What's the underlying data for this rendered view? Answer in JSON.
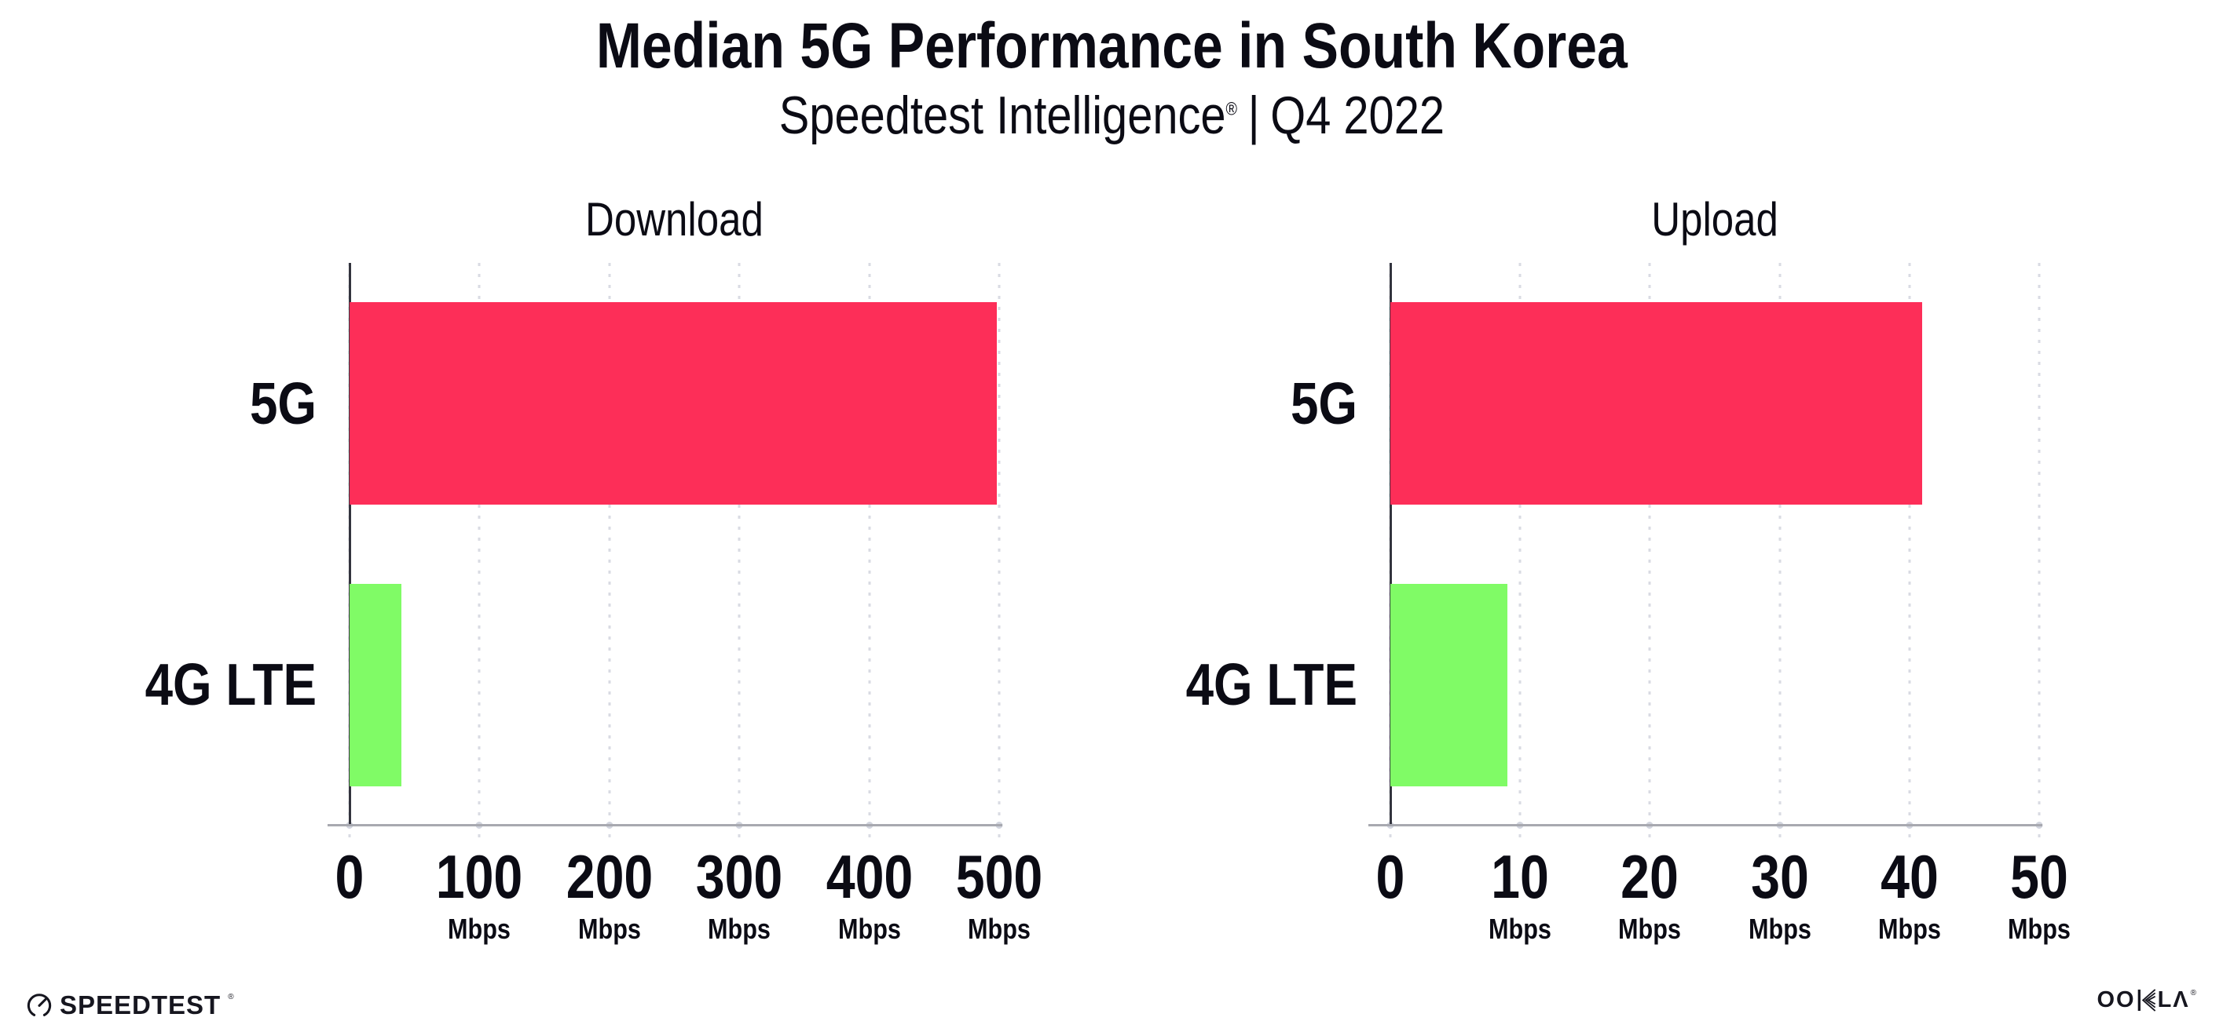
{
  "header": {
    "title": "Median 5G Performance in South Korea",
    "subtitle_brand": "Speedtest Intelligence",
    "subtitle_reg": "®",
    "subtitle_separator": "|",
    "subtitle_period": "Q4 2022"
  },
  "colors": {
    "bar_5g": "#fd2e58",
    "bar_4g_lte": "#80fb66",
    "y_axis": "#33343e",
    "x_axis": "#a8a9b0",
    "gridline": "#d9dbe3",
    "text": "#0b0b14"
  },
  "chart_data": [
    {
      "type": "bar",
      "orientation": "horizontal",
      "title": "Download",
      "categories": [
        "5G",
        "4G LTE"
      ],
      "values": [
        498,
        40
      ],
      "unit": "Mbps",
      "xlim": [
        0,
        500
      ],
      "xticks": [
        0,
        100,
        200,
        300,
        400,
        500
      ],
      "tick_unit": "Mbps",
      "grid": "dotted-vertical",
      "legend": "none",
      "bar_colors": [
        "#fd2e58",
        "#80fb66"
      ]
    },
    {
      "type": "bar",
      "orientation": "horizontal",
      "title": "Upload",
      "categories": [
        "5G",
        "4G LTE"
      ],
      "values": [
        41,
        9
      ],
      "unit": "Mbps",
      "xlim": [
        0,
        50
      ],
      "xticks": [
        0,
        10,
        20,
        30,
        40,
        50
      ],
      "tick_unit": "Mbps",
      "grid": "dotted-vertical",
      "legend": "none",
      "bar_colors": [
        "#fd2e58",
        "#80fb66"
      ]
    }
  ],
  "footer": {
    "speedtest_label": "SPEEDTEST",
    "speedtest_mark": "®",
    "ookla_label": "OOKLA",
    "ookla_parts": {
      "pre": "OO",
      "post": "LΛ"
    },
    "ookla_mark": "®"
  }
}
